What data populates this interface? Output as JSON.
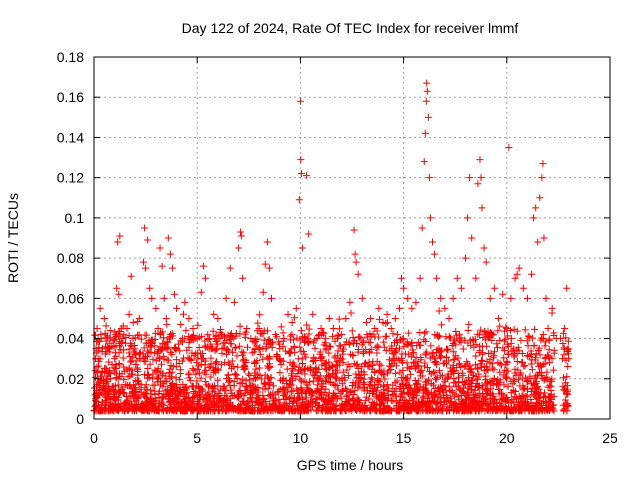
{
  "chart_data": {
    "type": "scatter",
    "title": "Day 122 of 2024, Rate Of TEC Index for receiver lmmf",
    "xlabel": "GPS time / hours",
    "ylabel": "ROTI / TECUs",
    "xlim": [
      0,
      25
    ],
    "ylim": [
      0,
      0.18
    ],
    "x_ticks": [
      0,
      5,
      10,
      15,
      20,
      25
    ],
    "x_tick_labels": [
      "0",
      "5",
      "10",
      "15",
      "20",
      "25"
    ],
    "y_ticks": [
      0,
      0.02,
      0.04,
      0.06,
      0.08,
      0.1,
      0.12,
      0.14,
      0.16,
      0.18
    ],
    "y_tick_labels": [
      "0",
      "0.02",
      "0.04",
      "0.06",
      "0.08",
      "0.1",
      "0.12",
      "0.14",
      "0.16",
      "0.18"
    ],
    "grid": true,
    "marker": "plus",
    "color": "#ff0000",
    "points": [
      [
        0.05,
        0.012
      ],
      [
        0.1,
        0.035
      ],
      [
        0.15,
        0.045
      ],
      [
        0.2,
        0.03
      ],
      [
        0.3,
        0.055
      ],
      [
        0.35,
        0.04
      ],
      [
        0.5,
        0.05
      ],
      [
        0.6,
        0.025
      ],
      [
        0.7,
        0.035
      ],
      [
        0.8,
        0.02
      ],
      [
        1.0,
        0.03
      ],
      [
        1.1,
        0.065
      ],
      [
        1.15,
        0.088
      ],
      [
        1.2,
        0.062
      ],
      [
        1.25,
        0.091
      ],
      [
        1.4,
        0.04
      ],
      [
        1.6,
        0.045
      ],
      [
        1.7,
        0.052
      ],
      [
        1.8,
        0.071
      ],
      [
        1.9,
        0.048
      ],
      [
        2.0,
        0.032
      ],
      [
        2.2,
        0.05
      ],
      [
        2.4,
        0.078
      ],
      [
        2.45,
        0.095
      ],
      [
        2.5,
        0.075
      ],
      [
        2.6,
        0.089
      ],
      [
        2.7,
        0.065
      ],
      [
        2.8,
        0.06
      ],
      [
        3.0,
        0.055
      ],
      [
        3.1,
        0.045
      ],
      [
        3.2,
        0.085
      ],
      [
        3.3,
        0.076
      ],
      [
        3.4,
        0.06
      ],
      [
        3.5,
        0.05
      ],
      [
        3.6,
        0.09
      ],
      [
        3.7,
        0.082
      ],
      [
        3.8,
        0.075
      ],
      [
        3.9,
        0.062
      ],
      [
        4.0,
        0.055
      ],
      [
        4.2,
        0.047
      ],
      [
        4.4,
        0.058
      ],
      [
        4.6,
        0.05
      ],
      [
        4.8,
        0.045
      ],
      [
        5.0,
        0.04
      ],
      [
        5.2,
        0.063
      ],
      [
        5.3,
        0.076
      ],
      [
        5.4,
        0.07
      ],
      [
        5.6,
        0.04
      ],
      [
        5.8,
        0.052
      ],
      [
        6.0,
        0.05
      ],
      [
        6.2,
        0.035
      ],
      [
        6.4,
        0.06
      ],
      [
        6.6,
        0.075
      ],
      [
        6.8,
        0.058
      ],
      [
        7.0,
        0.085
      ],
      [
        7.1,
        0.093
      ],
      [
        7.15,
        0.091
      ],
      [
        7.2,
        0.07
      ],
      [
        7.4,
        0.045
      ],
      [
        7.6,
        0.04
      ],
      [
        7.8,
        0.035
      ],
      [
        8.0,
        0.045
      ],
      [
        8.2,
        0.063
      ],
      [
        8.3,
        0.077
      ],
      [
        8.4,
        0.088
      ],
      [
        8.5,
        0.075
      ],
      [
        8.6,
        0.06
      ],
      [
        8.8,
        0.042
      ],
      [
        9.0,
        0.035
      ],
      [
        9.2,
        0.04
      ],
      [
        9.4,
        0.052
      ],
      [
        9.6,
        0.048
      ],
      [
        9.8,
        0.055
      ],
      [
        9.95,
        0.109
      ],
      [
        10.0,
        0.158
      ],
      [
        10.02,
        0.129
      ],
      [
        10.05,
        0.122
      ],
      [
        10.1,
        0.085
      ],
      [
        10.3,
        0.121
      ],
      [
        10.4,
        0.092
      ],
      [
        10.6,
        0.052
      ],
      [
        10.8,
        0.04
      ],
      [
        11.0,
        0.045
      ],
      [
        11.2,
        0.038
      ],
      [
        11.4,
        0.05
      ],
      [
        11.6,
        0.045
      ],
      [
        11.8,
        0.04
      ],
      [
        12.0,
        0.042
      ],
      [
        12.2,
        0.05
      ],
      [
        12.4,
        0.058
      ],
      [
        12.6,
        0.094
      ],
      [
        12.65,
        0.082
      ],
      [
        12.7,
        0.078
      ],
      [
        12.8,
        0.072
      ],
      [
        13.0,
        0.06
      ],
      [
        13.2,
        0.048
      ],
      [
        13.4,
        0.05
      ],
      [
        13.6,
        0.045
      ],
      [
        13.8,
        0.055
      ],
      [
        14.0,
        0.048
      ],
      [
        14.2,
        0.052
      ],
      [
        14.4,
        0.045
      ],
      [
        14.6,
        0.05
      ],
      [
        14.8,
        0.055
      ],
      [
        14.9,
        0.07
      ],
      [
        15.0,
        0.065
      ],
      [
        15.2,
        0.06
      ],
      [
        15.4,
        0.055
      ],
      [
        15.6,
        0.058
      ],
      [
        15.8,
        0.07
      ],
      [
        15.9,
        0.095
      ],
      [
        16.0,
        0.128
      ],
      [
        16.05,
        0.142
      ],
      [
        16.1,
        0.158
      ],
      [
        16.12,
        0.167
      ],
      [
        16.15,
        0.163
      ],
      [
        16.2,
        0.15
      ],
      [
        16.25,
        0.12
      ],
      [
        16.3,
        0.1
      ],
      [
        16.4,
        0.088
      ],
      [
        16.5,
        0.082
      ],
      [
        16.6,
        0.07
      ],
      [
        16.8,
        0.06
      ],
      [
        17.0,
        0.055
      ],
      [
        17.2,
        0.05
      ],
      [
        17.4,
        0.06
      ],
      [
        17.6,
        0.07
      ],
      [
        17.8,
        0.065
      ],
      [
        18.0,
        0.08
      ],
      [
        18.1,
        0.1
      ],
      [
        18.2,
        0.12
      ],
      [
        18.3,
        0.09
      ],
      [
        18.5,
        0.07
      ],
      [
        18.6,
        0.117
      ],
      [
        18.7,
        0.129
      ],
      [
        18.75,
        0.12
      ],
      [
        18.8,
        0.105
      ],
      [
        18.9,
        0.085
      ],
      [
        19.0,
        0.078
      ],
      [
        19.2,
        0.06
      ],
      [
        19.4,
        0.065
      ],
      [
        19.6,
        0.05
      ],
      [
        19.8,
        0.062
      ],
      [
        20.0,
        0.045
      ],
      [
        20.1,
        0.135
      ],
      [
        20.2,
        0.06
      ],
      [
        20.4,
        0.07
      ],
      [
        20.5,
        0.072
      ],
      [
        20.6,
        0.075
      ],
      [
        20.8,
        0.065
      ],
      [
        21.0,
        0.06
      ],
      [
        21.2,
        0.072
      ],
      [
        21.3,
        0.1
      ],
      [
        21.4,
        0.105
      ],
      [
        21.5,
        0.088
      ],
      [
        21.6,
        0.11
      ],
      [
        21.7,
        0.12
      ],
      [
        21.75,
        0.127
      ],
      [
        21.8,
        0.09
      ],
      [
        21.9,
        0.06
      ],
      [
        22.0,
        0.045
      ],
      [
        22.2,
        0.055
      ],
      [
        22.4,
        0.04
      ],
      [
        22.6,
        0.04
      ],
      [
        22.7,
        0.03
      ],
      [
        22.8,
        0.045
      ],
      [
        22.9,
        0.065
      ],
      [
        23.0,
        0.03
      ]
    ]
  }
}
